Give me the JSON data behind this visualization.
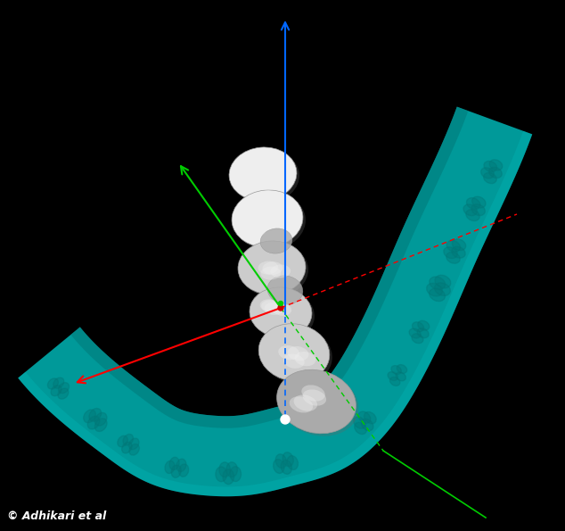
{
  "background_color": "#000000",
  "fig_width": 6.34,
  "fig_height": 5.95,
  "dpi": 100,
  "teal_color": "#009999",
  "teal_dark": "#007777",
  "teal_light": "#00BBBB",
  "white_tooth_color": "#CCCCCC",
  "white_tooth_highlight": "#EEEEEE",
  "white_tooth_shadow": "#AAAAAA",
  "axis_blue_color": "#0066FF",
  "axis_green_color": "#00CC00",
  "axis_red_color": "#FF0000",
  "axis_red_dashed": "#FF4444",
  "axis_green_dashed": "#00CC00",
  "watermark_text": "© Adhikari et al",
  "watermark_color": "#FFFFFF",
  "watermark_fontsize": 9
}
